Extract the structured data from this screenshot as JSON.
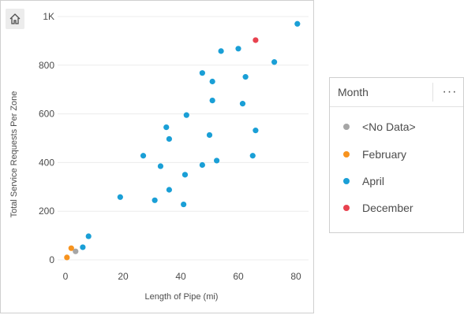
{
  "legend": {
    "title": "Month",
    "menu_icon": "more-horizontal-icon",
    "items": [
      {
        "label": "<No Data>",
        "color": "#a6a6a6"
      },
      {
        "label": "February",
        "color": "#f7931e"
      },
      {
        "label": "April",
        "color": "#1a9fd6"
      },
      {
        "label": "December",
        "color": "#e8424f"
      }
    ]
  },
  "toolbar": {
    "home_icon": "home-icon"
  },
  "chart_data": {
    "type": "scatter",
    "xlabel": "Length of Pipe (mi)",
    "ylabel": "Total Service Requests Per Zone",
    "xlim": [
      0,
      80
    ],
    "ylim": [
      0,
      1000
    ],
    "x_ticks": [
      {
        "value": 0,
        "label": "0"
      },
      {
        "value": 20,
        "label": "20"
      },
      {
        "value": 40,
        "label": "40"
      },
      {
        "value": 60,
        "label": "60"
      },
      {
        "value": 80,
        "label": "80"
      }
    ],
    "y_ticks": [
      {
        "value": 0,
        "label": "0"
      },
      {
        "value": 200,
        "label": "200"
      },
      {
        "value": 400,
        "label": "400"
      },
      {
        "value": 600,
        "label": "600"
      },
      {
        "value": 800,
        "label": "800"
      },
      {
        "value": 1000,
        "label": "1K"
      }
    ],
    "grid": "horizontal",
    "legend_position": "right",
    "series": [
      {
        "name": "<No Data>",
        "color": "#a6a6a6",
        "points": [
          [
            3.5,
            35
          ]
        ]
      },
      {
        "name": "February",
        "color": "#f7931e",
        "points": [
          [
            0.5,
            10
          ],
          [
            2,
            48
          ]
        ]
      },
      {
        "name": "April",
        "color": "#1a9fd6",
        "points": [
          [
            6,
            52
          ],
          [
            8,
            97
          ],
          [
            19,
            258
          ],
          [
            27,
            428
          ],
          [
            31,
            245
          ],
          [
            33,
            385
          ],
          [
            35,
            545
          ],
          [
            36,
            497
          ],
          [
            36,
            288
          ],
          [
            41,
            228
          ],
          [
            41.5,
            350
          ],
          [
            42,
            595
          ],
          [
            47.5,
            768
          ],
          [
            47.5,
            390
          ],
          [
            50,
            513
          ],
          [
            51,
            733
          ],
          [
            51,
            655
          ],
          [
            52.5,
            408
          ],
          [
            54,
            858
          ],
          [
            60,
            868
          ],
          [
            61.5,
            642
          ],
          [
            62.5,
            752
          ],
          [
            65,
            428
          ],
          [
            66,
            532
          ],
          [
            72.5,
            813
          ],
          [
            80.5,
            970
          ]
        ]
      },
      {
        "name": "December",
        "color": "#e8424f",
        "points": [
          [
            66,
            903
          ]
        ]
      }
    ]
  }
}
